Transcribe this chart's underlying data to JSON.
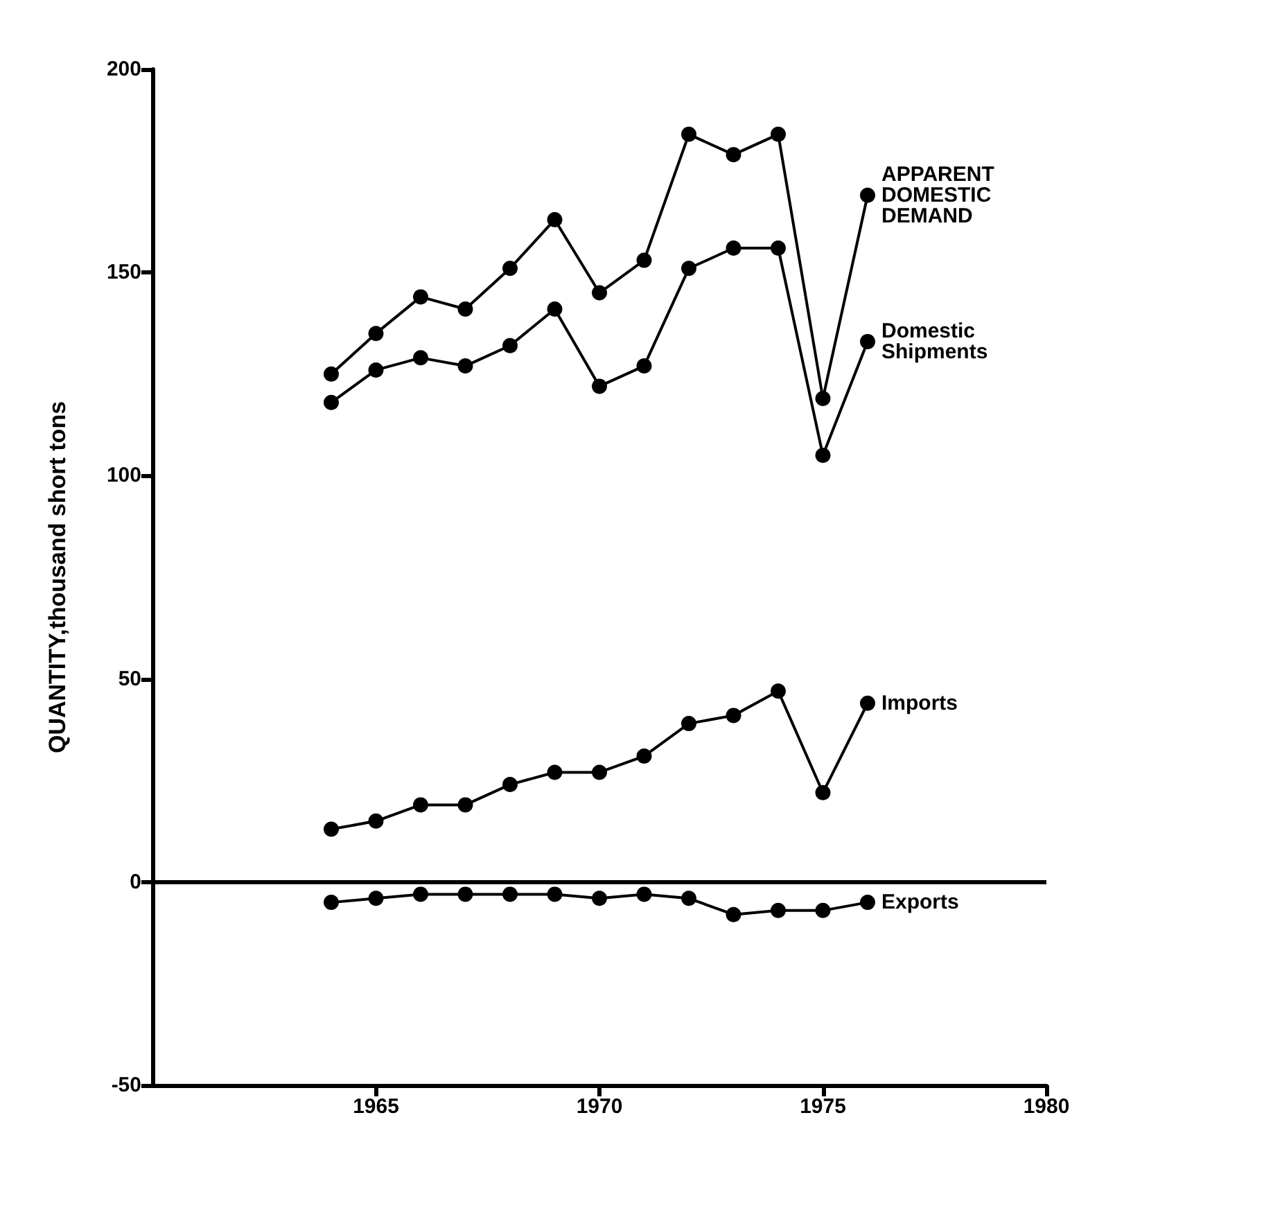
{
  "chart_data": {
    "type": "line",
    "ylabel": "QUANTITY,thousand short tons",
    "x": [
      1964,
      1965,
      1966,
      1967,
      1968,
      1969,
      1970,
      1971,
      1972,
      1973,
      1974,
      1975,
      1976
    ],
    "series": [
      {
        "name": "APPARENT DOMESTIC DEMAND",
        "color": "#000000",
        "values": [
          125,
          135,
          144,
          141,
          151,
          163,
          145,
          153,
          184,
          179,
          184,
          119,
          169
        ]
      },
      {
        "name": "Domestic Shipments",
        "color": "#000000",
        "values": [
          118,
          126,
          129,
          127,
          132,
          141,
          122,
          127,
          151,
          156,
          156,
          105,
          133
        ]
      },
      {
        "name": "Imports",
        "color": "#000000",
        "values": [
          13,
          15,
          19,
          19,
          24,
          27,
          27,
          31,
          39,
          41,
          47,
          22,
          44
        ]
      },
      {
        "name": "Exports",
        "color": "#000000",
        "values": [
          -5,
          -4,
          -3,
          -3,
          -3,
          -3,
          -4,
          -3,
          -4,
          -8,
          -7,
          -7,
          -5
        ]
      }
    ],
    "xlim": [
      1960,
      1980
    ],
    "xticks": [
      1965,
      1970,
      1975,
      1980
    ],
    "ylim": [
      -50,
      200
    ],
    "yticks": [
      -50,
      0,
      50,
      100,
      150,
      200
    ],
    "ref_lines": [
      {
        "axis": "y",
        "value": 0,
        "color": "#000000"
      }
    ],
    "grid": false,
    "legend": false,
    "marker": "circle",
    "line_style": "solid"
  }
}
